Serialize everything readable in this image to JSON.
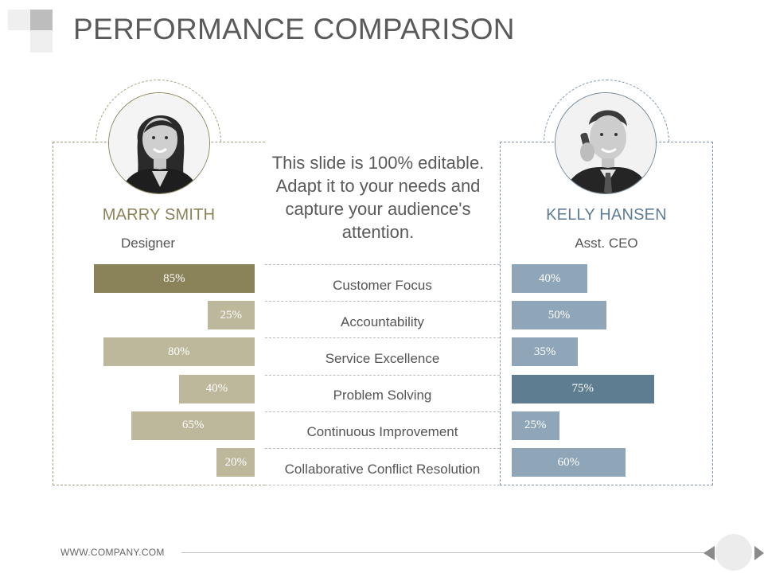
{
  "title": "PERFORMANCE COMPARISON",
  "blurb": "This slide is 100% editable. Adapt it to your needs and capture your audience's attention.",
  "footer": {
    "url": "WWW.COMPANY.COM"
  },
  "people": [
    {
      "name": "MARRY SMITH",
      "role": "Designer",
      "avatar_icon": "woman-portrait-icon"
    },
    {
      "name": "KELLY HANSEN",
      "role": "Asst. CEO",
      "avatar_icon": "man-phone-portrait-icon"
    }
  ],
  "colors": {
    "left_highlight": "#8a8259",
    "left_bar": "#bdb89b",
    "right_highlight": "#5f7d90",
    "right_bar": "#8ea6b7"
  },
  "chart_data": {
    "type": "bar",
    "orientation": "horizontal-diverging",
    "title": "PERFORMANCE COMPARISON",
    "categories": [
      "Customer Focus",
      "Accountability",
      "Service Excellence",
      "Problem Solving",
      "Continuous Improvement",
      "Collaborative Conflict Resolution"
    ],
    "series": [
      {
        "name": "MARRY SMITH",
        "values": [
          85,
          25,
          80,
          40,
          65,
          20
        ],
        "labels": [
          "85%",
          "25%",
          "80%",
          "40%",
          "65%",
          "20%"
        ],
        "highlight_index": 0
      },
      {
        "name": "KELLY HANSEN",
        "values": [
          40,
          50,
          35,
          75,
          25,
          60
        ],
        "labels": [
          "40%",
          "50%",
          "35%",
          "75%",
          "25%",
          "60%"
        ],
        "highlight_index": 3
      }
    ],
    "unit": "%",
    "xlim": [
      0,
      100
    ]
  }
}
